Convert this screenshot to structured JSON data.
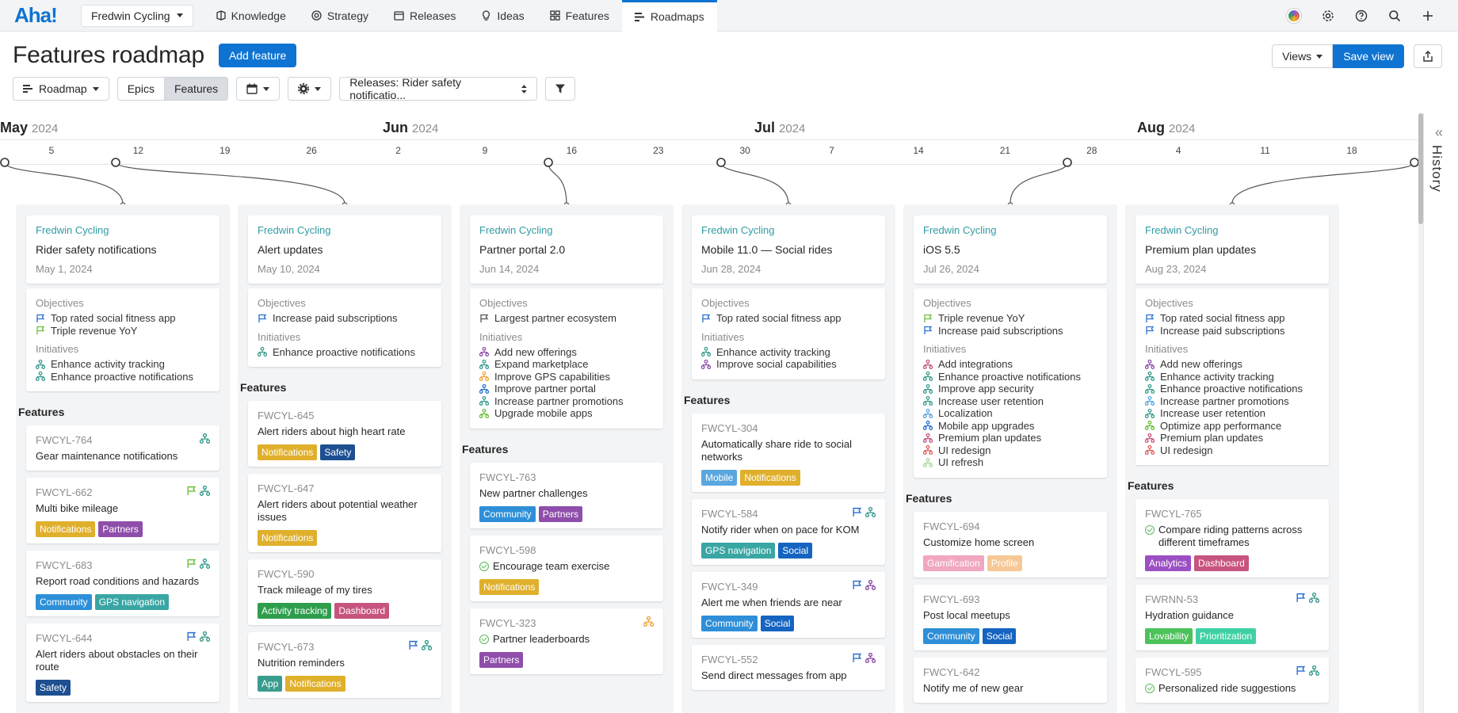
{
  "nav": {
    "logo": "Aha!",
    "workspace": "Fredwin Cycling",
    "tabs": [
      {
        "label": "Knowledge",
        "icon": "knowledge-icon"
      },
      {
        "label": "Strategy",
        "icon": "target-icon"
      },
      {
        "label": "Releases",
        "icon": "calendar-icon"
      },
      {
        "label": "Ideas",
        "icon": "lightbulb-icon"
      },
      {
        "label": "Features",
        "icon": "grid-icon"
      },
      {
        "label": "Roadmaps",
        "icon": "roadmap-icon",
        "active": true
      }
    ]
  },
  "page": {
    "title": "Features roadmap",
    "add_feature": "Add feature",
    "views": "Views",
    "save_view": "Save view"
  },
  "toolbar": {
    "roadmap": "Roadmap",
    "epics": "Epics",
    "features": "Features",
    "releases_filter": "Releases: Rider safety notificatio..."
  },
  "timeline": {
    "months": [
      {
        "name": "May",
        "year": "2024"
      },
      {
        "name": "Jun",
        "year": "2024"
      },
      {
        "name": "Jul",
        "year": "2024"
      },
      {
        "name": "Aug",
        "year": "2024"
      }
    ],
    "ticks": [
      "5",
      "12",
      "19",
      "26",
      "2",
      "9",
      "16",
      "23",
      "30",
      "7",
      "14",
      "21",
      "28",
      "4",
      "11",
      "18"
    ]
  },
  "history_label": "History",
  "labels": {
    "objectives": "Objectives",
    "initiatives": "Initiatives",
    "features": "Features"
  },
  "tag_colors": {
    "Notifications": "#e0b02c",
    "Safety": "#1d4f91",
    "Partners": "#8e4eaa",
    "Community": "#2e8fd8",
    "GPS navigation": "#3aa6a4",
    "Activity tracking": "#2e9e4d",
    "Dashboard": "#c7547e",
    "App": "#3a9c8f",
    "Mobile": "#5aa7e0",
    "Social": "#1564c0",
    "Gamification": "#f0a7bf",
    "Profile": "#f6c896",
    "Analytics": "#9c4fc4",
    "Lovability": "#4cc25a",
    "Prioritization": "#3fd1a5"
  },
  "columns": [
    {
      "workspace": "Fredwin Cycling",
      "name": "Rider safety notifications",
      "date": "May 1, 2024",
      "objectives": [
        {
          "text": "Top rated social fitness app",
          "color": "#2a6fd1"
        },
        {
          "text": "Triple revenue YoY",
          "color": "#6cbf3a"
        }
      ],
      "initiatives": [
        {
          "text": "Enhance activity tracking",
          "color": "#3a9c8f"
        },
        {
          "text": "Enhance proactive notifications",
          "color": "#3a9c8f"
        }
      ],
      "features": [
        {
          "ref": "FWCYL-764",
          "name": "Gear maintenance notifications",
          "icons": [
            "initiative"
          ],
          "tags": []
        },
        {
          "ref": "FWCYL-662",
          "name": "Multi bike mileage",
          "icons": [
            "goal-green",
            "initiative"
          ],
          "tags": [
            "Notifications",
            "Partners"
          ]
        },
        {
          "ref": "FWCYL-683",
          "name": "Report road conditions and hazards",
          "icons": [
            "goal-green",
            "initiative"
          ],
          "tags": [
            "Community",
            "GPS navigation"
          ]
        },
        {
          "ref": "FWCYL-644",
          "name": "Alert riders about obstacles on their route",
          "icons": [
            "goal",
            "initiative"
          ],
          "tags": [
            "Safety"
          ]
        }
      ]
    },
    {
      "workspace": "Fredwin Cycling",
      "name": "Alert updates",
      "date": "May 10, 2024",
      "objectives": [
        {
          "text": "Increase paid subscriptions",
          "color": "#2a6fd1"
        }
      ],
      "initiatives": [
        {
          "text": "Enhance proactive notifications",
          "color": "#3a9c8f"
        }
      ],
      "features": [
        {
          "ref": "FWCYL-645",
          "name": "Alert riders about high heart rate",
          "icons": [],
          "tags": [
            "Notifications",
            "Safety"
          ]
        },
        {
          "ref": "FWCYL-647",
          "name": "Alert riders about potential weather issues",
          "icons": [],
          "tags": [
            "Notifications"
          ]
        },
        {
          "ref": "FWCYL-590",
          "name": "Track mileage of my tires",
          "icons": [],
          "tags": [
            "Activity tracking",
            "Dashboard"
          ]
        },
        {
          "ref": "FWCYL-673",
          "name": "Nutrition reminders",
          "icons": [
            "goal",
            "initiative"
          ],
          "tags": [
            "App",
            "Notifications"
          ]
        }
      ]
    },
    {
      "workspace": "Fredwin Cycling",
      "name": "Partner portal 2.0",
      "date": "Jun 14, 2024",
      "objectives": [
        {
          "text": "Largest partner ecosystem",
          "color": "#555"
        }
      ],
      "initiatives": [
        {
          "text": "Add new offerings",
          "color": "#8e4eaa"
        },
        {
          "text": "Expand marketplace",
          "color": "#3a9c8f"
        },
        {
          "text": "Improve GPS capabilities",
          "color": "#f1a33c"
        },
        {
          "text": "Improve partner portal",
          "color": "#2a6fd1"
        },
        {
          "text": "Increase partner promotions",
          "color": "#3a9c8f"
        },
        {
          "text": "Upgrade mobile apps",
          "color": "#6cbf3a"
        }
      ],
      "features": [
        {
          "ref": "FWCYL-763",
          "name": "New partner challenges",
          "icons": [],
          "tags": [
            "Community",
            "Partners"
          ]
        },
        {
          "ref": "FWCYL-598",
          "name": "Encourage team exercise",
          "done": true,
          "icons": [],
          "tags": [
            "Notifications"
          ]
        },
        {
          "ref": "FWCYL-323",
          "name": "Partner leaderboards",
          "done": true,
          "icons": [
            "initiative-orange"
          ],
          "tags": [
            "Partners"
          ]
        }
      ]
    },
    {
      "workspace": "Fredwin Cycling",
      "name": "Mobile 11.0 — Social rides",
      "date": "Jun 28, 2024",
      "objectives": [
        {
          "text": "Top rated social fitness app",
          "color": "#2a6fd1"
        }
      ],
      "initiatives": [
        {
          "text": "Enhance activity tracking",
          "color": "#3a9c8f"
        },
        {
          "text": "Improve social capabilities",
          "color": "#8e4eaa"
        }
      ],
      "features": [
        {
          "ref": "FWCYL-304",
          "name": "Automatically share ride to social networks",
          "icons": [],
          "tags": [
            "Mobile",
            "Notifications"
          ]
        },
        {
          "ref": "FWCYL-584",
          "name": "Notify rider when on pace for KOM",
          "icons": [
            "goal",
            "initiative"
          ],
          "tags": [
            "GPS navigation",
            "Social"
          ]
        },
        {
          "ref": "FWCYL-349",
          "name": "Alert me when friends are near",
          "icons": [
            "goal",
            "initiative-purple"
          ],
          "tags": [
            "Community",
            "Social"
          ]
        },
        {
          "ref": "FWCYL-552",
          "name": "Send direct messages from app",
          "icons": [
            "goal",
            "initiative-purple"
          ],
          "tags": []
        }
      ]
    },
    {
      "workspace": "Fredwin Cycling",
      "name": "iOS 5.5",
      "date": "Jul 26, 2024",
      "objectives": [
        {
          "text": "Triple revenue YoY",
          "color": "#6cbf3a"
        },
        {
          "text": "Increase paid subscriptions",
          "color": "#2a6fd1"
        }
      ],
      "initiatives": [
        {
          "text": "Add integrations",
          "color": "#c7547e"
        },
        {
          "text": "Enhance proactive notifications",
          "color": "#3a9c8f"
        },
        {
          "text": "Improve app security",
          "color": "#3a9c8f"
        },
        {
          "text": "Increase user retention",
          "color": "#3a9c8f"
        },
        {
          "text": "Localization",
          "color": "#5aa7e0"
        },
        {
          "text": "Mobile app upgrades",
          "color": "#2a6fd1"
        },
        {
          "text": "Premium plan updates",
          "color": "#c7547e"
        },
        {
          "text": "UI redesign",
          "color": "#e05d5d"
        },
        {
          "text": "UI refresh",
          "color": "#a8d89a"
        }
      ],
      "features": [
        {
          "ref": "FWCYL-694",
          "name": "Customize home screen",
          "icons": [],
          "tags": [
            "Gamification",
            "Profile"
          ]
        },
        {
          "ref": "FWCYL-693",
          "name": "Post local meetups",
          "icons": [],
          "tags": [
            "Community",
            "Social"
          ]
        },
        {
          "ref": "FWCYL-642",
          "name": "Notify me of new gear",
          "icons": [],
          "tags": []
        }
      ]
    },
    {
      "workspace": "Fredwin Cycling",
      "name": "Premium plan updates",
      "date": "Aug 23, 2024",
      "objectives": [
        {
          "text": "Top rated social fitness app",
          "color": "#2a6fd1"
        },
        {
          "text": "Increase paid subscriptions",
          "color": "#2a6fd1"
        }
      ],
      "initiatives": [
        {
          "text": "Add new offerings",
          "color": "#8e4eaa"
        },
        {
          "text": "Enhance activity tracking",
          "color": "#3a9c8f"
        },
        {
          "text": "Enhance proactive notifications",
          "color": "#3a9c8f"
        },
        {
          "text": "Increase partner promotions",
          "color": "#5aa7e0"
        },
        {
          "text": "Increase user retention",
          "color": "#3a9c8f"
        },
        {
          "text": "Optimize app performance",
          "color": "#6cbf3a"
        },
        {
          "text": "Premium plan updates",
          "color": "#c7547e"
        },
        {
          "text": "UI redesign",
          "color": "#e05d5d"
        }
      ],
      "features": [
        {
          "ref": "FWCYL-765",
          "name": "Compare riding patterns across different timeframes",
          "done": true,
          "icons": [],
          "tags": [
            "Analytics",
            "Dashboard"
          ]
        },
        {
          "ref": "FWRNN-53",
          "name": "Hydration guidance",
          "icons": [
            "goal",
            "initiative"
          ],
          "tags": [
            "Lovability",
            "Prioritization"
          ]
        },
        {
          "ref": "FWCYL-595",
          "name": "Personalized ride suggestions",
          "done": true,
          "icons": [
            "goal",
            "initiative"
          ],
          "tags": []
        }
      ]
    }
  ]
}
